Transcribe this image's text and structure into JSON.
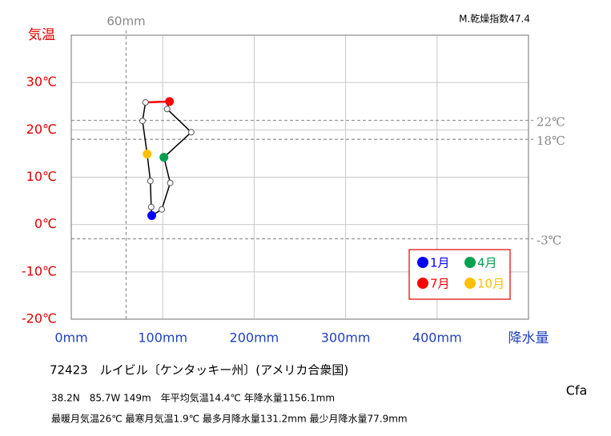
{
  "chart_data": {
    "type": "climograph",
    "index_label": "M.乾燥指数47.4",
    "y_label": "気温",
    "x_label": "降水量",
    "x": [
      88,
      99,
      108.2,
      101.3,
      131.2,
      104.8,
      107.4,
      81.2,
      77.9,
      83,
      86.5,
      87.4
    ],
    "values": [
      1.9,
      3.2,
      8.8,
      14.2,
      19.5,
      24.4,
      26,
      25.8,
      21.9,
      14.9,
      9.2,
      3.7
    ],
    "point_colors": [
      "#0000ff",
      "#ffffff",
      "#ffffff",
      "#00a050",
      "#ffffff",
      "#ffffff",
      "#ff0000",
      "#ffffff",
      "#ffffff",
      "#ffc000",
      "#ffffff",
      "#ffffff"
    ],
    "segment_colors": [
      "#000000",
      "#000000",
      "#000000",
      "#000000",
      "#000000",
      "#000000",
      "#ff0000",
      "#000000",
      "#000000",
      "#000000",
      "#000000",
      "#000000"
    ],
    "xlim": [
      0,
      500
    ],
    "xticks": [
      {
        "value": 0,
        "label": "0mm"
      },
      {
        "value": 100,
        "label": "100mm"
      },
      {
        "value": 200,
        "label": "200mm"
      },
      {
        "value": 300,
        "label": "300mm"
      },
      {
        "value": 400,
        "label": "400mm"
      }
    ],
    "ylim": [
      -20,
      40
    ],
    "yticks": [
      {
        "value": -20,
        "label": "-20℃"
      },
      {
        "value": -10,
        "label": "-10℃"
      },
      {
        "value": 0,
        "label": "0℃"
      },
      {
        "value": 10,
        "label": "10℃"
      },
      {
        "value": 20,
        "label": "20℃"
      },
      {
        "value": 30,
        "label": "30℃"
      }
    ],
    "ref_x": [
      {
        "value": 60,
        "label": "60mm"
      }
    ],
    "ref_y": [
      {
        "value": 22,
        "label": "22℃"
      },
      {
        "value": 18,
        "label": "18℃"
      },
      {
        "value": -3,
        "label": "-3℃"
      }
    ],
    "grid": true,
    "legend": [
      {
        "name": "1月",
        "color": "#0000ff"
      },
      {
        "name": "4月",
        "color": "#00a050"
      },
      {
        "name": "7月",
        "color": "#ff0000"
      },
      {
        "name": "10月",
        "color": "#ffc000"
      }
    ],
    "station": "72423　ルイビル〔ケンタッキー州〕(アメリカ合衆国)",
    "info1": "38.2N　85.7W 149m　年平均気温14.4℃ 年降水量1156.1mm",
    "info2": "最暖月気温26℃ 最寒月気温1.9℃ 最多月降水量131.2mm 最少月降水量77.9mm",
    "climate": "Cfa"
  }
}
